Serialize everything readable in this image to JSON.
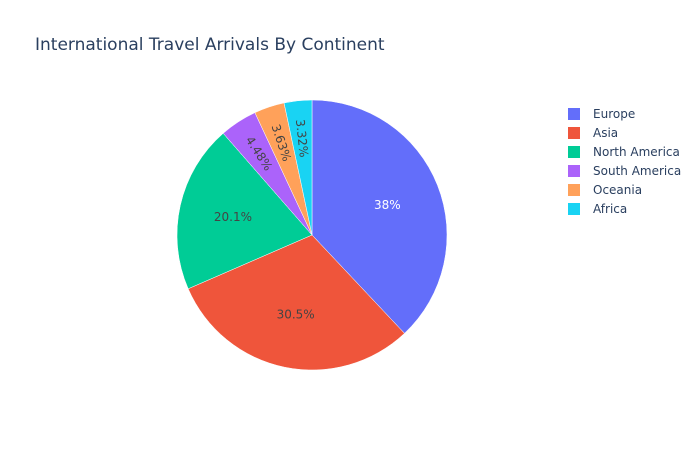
{
  "chart_data": {
    "type": "pie",
    "title": "International Travel Arrivals By Continent",
    "categories": [
      "Europe",
      "Asia",
      "North America",
      "South America",
      "Oceania",
      "Africa"
    ],
    "values": [
      38.0,
      30.5,
      20.1,
      4.48,
      3.63,
      3.32
    ],
    "slice_labels": [
      "38%",
      "30.5%",
      "20.1%",
      "4.48%",
      "3.63%",
      "3.32%"
    ],
    "colors": [
      "#636efa",
      "#ef553b",
      "#00cc96",
      "#ab63fa",
      "#ffa15a",
      "#19d3f3"
    ],
    "label_colors": [
      "#ffffff",
      "#444444",
      "#444444",
      "#444444",
      "#444444",
      "#444444"
    ],
    "direction": "clockwise",
    "start_angle": "12 o'clock",
    "legend_position": "right"
  }
}
